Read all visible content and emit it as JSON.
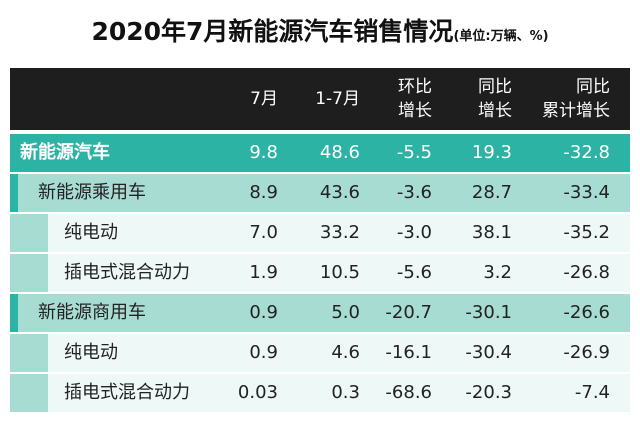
{
  "header": {
    "title": "2020年7月新能源汽车销售情况",
    "unit": "(单位:万辆、%)"
  },
  "table": {
    "columns": [
      [
        "7月"
      ],
      [
        "1-7月"
      ],
      [
        "环比",
        "增长"
      ],
      [
        "同比",
        "增长"
      ],
      [
        "同比",
        "累计增长"
      ]
    ],
    "rows": [
      {
        "label": "新能源汽车",
        "values": [
          "9.8",
          "48.6",
          "-5.5",
          "19.3",
          "-32.8"
        ],
        "children": [
          {
            "label": "新能源乘用车",
            "values": [
              "8.9",
              "43.6",
              "-3.6",
              "28.7",
              "-33.4"
            ],
            "children": [
              {
                "label": "纯电动",
                "values": [
                  "7.0",
                  "33.2",
                  "-3.0",
                  "38.1",
                  "-35.2"
                ]
              },
              {
                "label": "插电式混合动力",
                "values": [
                  "1.9",
                  "10.5",
                  "-5.6",
                  "3.2",
                  "-26.8"
                ]
              }
            ]
          },
          {
            "label": "新能源商用车",
            "values": [
              "0.9",
              "5.0",
              "-20.7",
              "-30.1",
              "-26.6"
            ],
            "children": [
              {
                "label": "纯电动",
                "values": [
                  "0.9",
                  "4.6",
                  "-16.1",
                  "-30.4",
                  "-26.9"
                ]
              },
              {
                "label": "插电式混合动力",
                "values": [
                  "0.03",
                  "0.3",
                  "-68.6",
                  "-20.3",
                  "-7.4"
                ]
              }
            ]
          }
        ]
      }
    ]
  }
}
